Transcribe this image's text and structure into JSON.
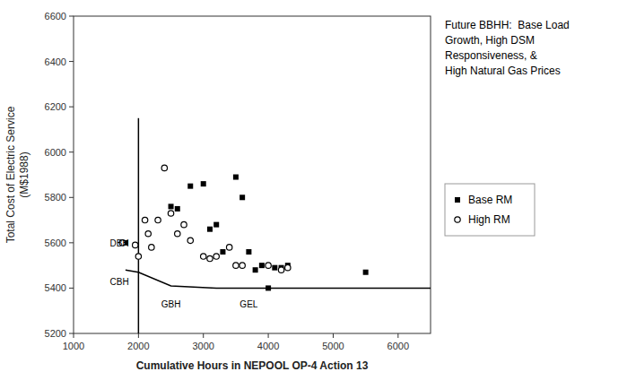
{
  "chart_data": {
    "type": "scatter",
    "xlabel": "Cumulative Hours in NEPOOL OP-4 Action 13",
    "ylabel": "Total Cost of Electric Service\n(M$1988)",
    "subtitle": "Future BBHH:  Base Load\nGrowth, High DSM\nResponsiveness, &\nHigh Natural Gas Prices",
    "xlim": [
      1000,
      6500
    ],
    "ylim": [
      5200,
      6600
    ],
    "xticks": [
      1000,
      2000,
      3000,
      4000,
      5000,
      6000
    ],
    "yticks": [
      5200,
      5400,
      5600,
      5800,
      6000,
      6200,
      6400,
      6600
    ],
    "grid": false,
    "legend": "right",
    "series": [
      {
        "name": "Base RM",
        "type": "scatter",
        "marker": "square",
        "color": "#000000",
        "x": [
          1800,
          2500,
          2600,
          2800,
          3000,
          3100,
          3200,
          3300,
          3500,
          3600,
          3700,
          3800,
          3900,
          4000,
          4100,
          4200,
          4300,
          5500
        ],
        "values": [
          5600,
          5760,
          5750,
          5850,
          5860,
          5660,
          5680,
          5560,
          5890,
          5800,
          5560,
          5480,
          5500,
          5400,
          5490,
          5490,
          5500,
          5470
        ]
      },
      {
        "name": "High RM",
        "type": "scatter",
        "marker": "open-circle",
        "color": "#000000",
        "x": [
          1750,
          1950,
          2000,
          2100,
          2150,
          2200,
          2300,
          2400,
          2500,
          2600,
          2700,
          2800,
          3000,
          3100,
          3200,
          3400,
          3500,
          3600,
          4000,
          4200,
          4300
        ],
        "values": [
          5600,
          5590,
          5540,
          5700,
          5640,
          5580,
          5700,
          5930,
          5730,
          5640,
          5680,
          5610,
          5540,
          5530,
          5540,
          5580,
          5500,
          5500,
          5500,
          5480,
          5490
        ]
      },
      {
        "type": "line",
        "line_style": "solid",
        "color": "#000000",
        "x": [
          1800,
          2000,
          2500,
          3200,
          3800,
          6500
        ],
        "values": [
          5480,
          5470,
          5410,
          5400,
          5400,
          5400
        ]
      },
      {
        "type": "line",
        "line_style": "solid",
        "color": "#000000",
        "x": [
          2000,
          2000
        ],
        "values": [
          5200,
          6150
        ]
      }
    ],
    "annotations": [
      {
        "text": "DBH",
        "x": 1560,
        "y": 5598
      },
      {
        "text": "CBH",
        "x": 1560,
        "y": 5430
      },
      {
        "text": "GBH",
        "x": 2500,
        "y": 5355
      },
      {
        "text": "GEL",
        "x": 3700,
        "y": 5355
      }
    ]
  }
}
